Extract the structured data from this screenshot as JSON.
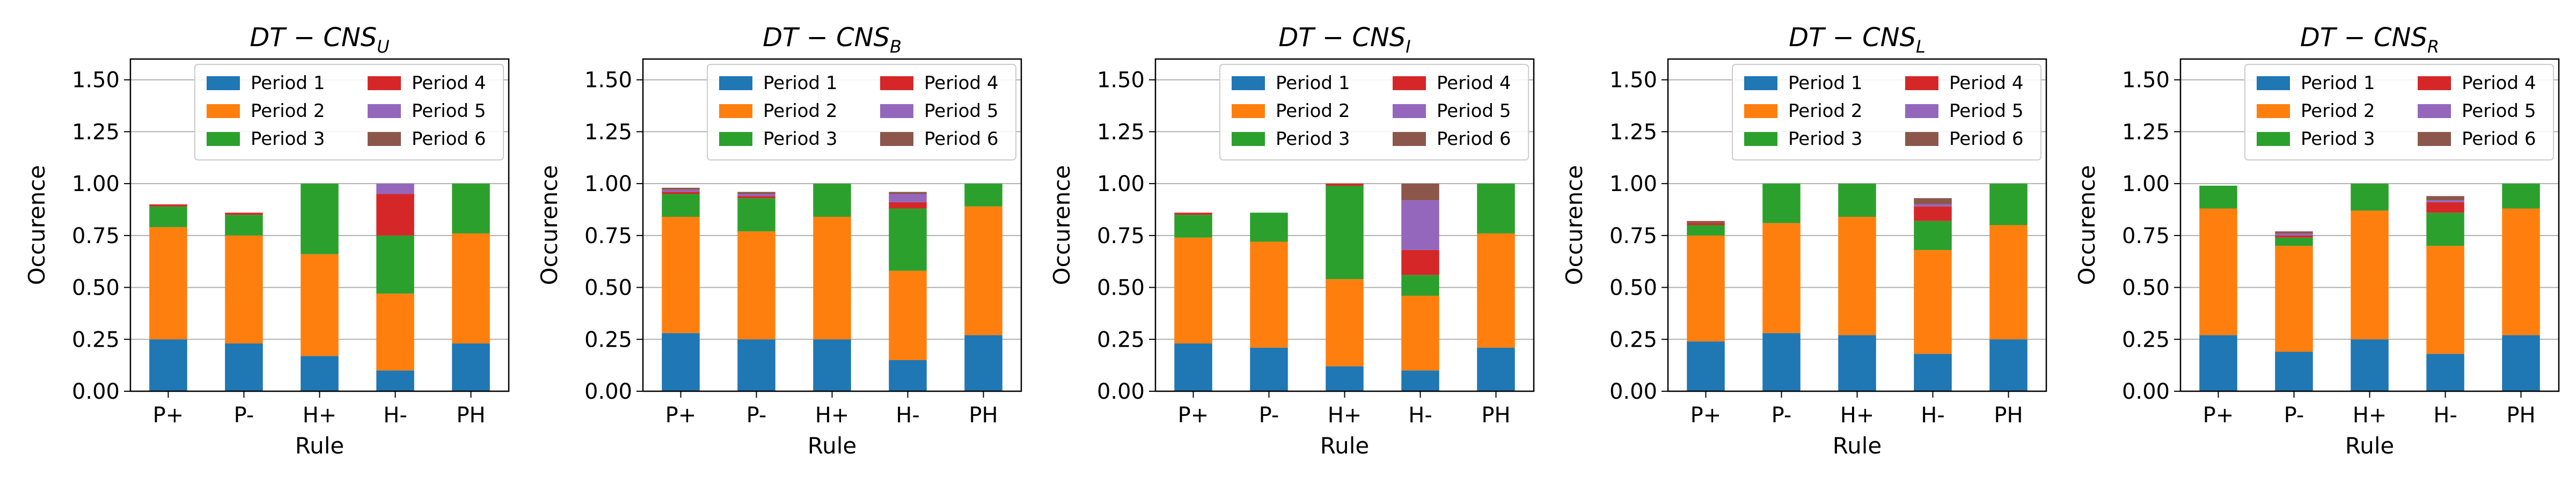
{
  "chart_data": [
    {
      "type": "bar",
      "stacked": true,
      "title_main": "DT − CNS",
      "title_sub": "U",
      "xlabel": "Rule",
      "ylabel": "Occurence",
      "ylim": [
        0,
        1.6
      ],
      "yticks": [
        "0.00",
        "0.25",
        "0.50",
        "0.75",
        "1.00",
        "1.25",
        "1.50"
      ],
      "categories": [
        "P+",
        "P-",
        "H+",
        "H-",
        "PH"
      ],
      "legend_location": "top-right",
      "series": [
        {
          "name": "Period 1",
          "color": "#1f77b4",
          "values": [
            0.25,
            0.23,
            0.17,
            0.1,
            0.23
          ]
        },
        {
          "name": "Period 2",
          "color": "#ff7f0e",
          "values": [
            0.54,
            0.52,
            0.49,
            0.37,
            0.53
          ]
        },
        {
          "name": "Period 3",
          "color": "#2ca02c",
          "values": [
            0.1,
            0.1,
            0.34,
            0.28,
            0.24
          ]
        },
        {
          "name": "Period 4",
          "color": "#d62728",
          "values": [
            0.01,
            0.01,
            0.0,
            0.2,
            0.0
          ]
        },
        {
          "name": "Period 5",
          "color": "#9467bd",
          "values": [
            0.0,
            0.0,
            0.0,
            0.05,
            0.0
          ]
        },
        {
          "name": "Period 6",
          "color": "#8c564b",
          "values": [
            0.0,
            0.0,
            0.0,
            0.0,
            0.0
          ]
        }
      ]
    },
    {
      "type": "bar",
      "stacked": true,
      "title_main": "DT − CNS",
      "title_sub": "B",
      "xlabel": "Rule",
      "ylabel": "Occurence",
      "ylim": [
        0,
        1.6
      ],
      "yticks": [
        "0.00",
        "0.25",
        "0.50",
        "0.75",
        "1.00",
        "1.25",
        "1.50"
      ],
      "categories": [
        "P+",
        "P-",
        "H+",
        "H-",
        "PH"
      ],
      "legend_location": "top-right",
      "series": [
        {
          "name": "Period 1",
          "color": "#1f77b4",
          "values": [
            0.28,
            0.25,
            0.25,
            0.15,
            0.27
          ]
        },
        {
          "name": "Period 2",
          "color": "#ff7f0e",
          "values": [
            0.56,
            0.52,
            0.59,
            0.43,
            0.62
          ]
        },
        {
          "name": "Period 3",
          "color": "#2ca02c",
          "values": [
            0.11,
            0.16,
            0.16,
            0.3,
            0.11
          ]
        },
        {
          "name": "Period 4",
          "color": "#d62728",
          "values": [
            0.01,
            0.01,
            0.0,
            0.03,
            0.0
          ]
        },
        {
          "name": "Period 5",
          "color": "#9467bd",
          "values": [
            0.01,
            0.01,
            0.0,
            0.04,
            0.0
          ]
        },
        {
          "name": "Period 6",
          "color": "#8c564b",
          "values": [
            0.01,
            0.01,
            0.0,
            0.01,
            0.0
          ]
        }
      ]
    },
    {
      "type": "bar",
      "stacked": true,
      "title_main": "DT − CNS",
      "title_sub": "I",
      "xlabel": "Rule",
      "ylabel": "Occurence",
      "ylim": [
        0,
        1.6
      ],
      "yticks": [
        "0.00",
        "0.25",
        "0.50",
        "0.75",
        "1.00",
        "1.25",
        "1.50"
      ],
      "categories": [
        "P+",
        "P-",
        "H+",
        "H-",
        "PH"
      ],
      "legend_location": "top-right",
      "series": [
        {
          "name": "Period 1",
          "color": "#1f77b4",
          "values": [
            0.23,
            0.21,
            0.12,
            0.1,
            0.21
          ]
        },
        {
          "name": "Period 2",
          "color": "#ff7f0e",
          "values": [
            0.51,
            0.51,
            0.42,
            0.36,
            0.55
          ]
        },
        {
          "name": "Period 3",
          "color": "#2ca02c",
          "values": [
            0.11,
            0.14,
            0.45,
            0.1,
            0.24
          ]
        },
        {
          "name": "Period 4",
          "color": "#d62728",
          "values": [
            0.01,
            0.0,
            0.01,
            0.12,
            0.0
          ]
        },
        {
          "name": "Period 5",
          "color": "#9467bd",
          "values": [
            0.0,
            0.0,
            0.0,
            0.24,
            0.0
          ]
        },
        {
          "name": "Period 6",
          "color": "#8c564b",
          "values": [
            0.0,
            0.0,
            0.0,
            0.08,
            0.0
          ]
        }
      ]
    },
    {
      "type": "bar",
      "stacked": true,
      "title_main": "DT − CNS",
      "title_sub": "L",
      "xlabel": "Rule",
      "ylabel": "Occurence",
      "ylim": [
        0,
        1.6
      ],
      "yticks": [
        "0.00",
        "0.25",
        "0.50",
        "0.75",
        "1.00",
        "1.25",
        "1.50"
      ],
      "categories": [
        "P+",
        "P-",
        "H+",
        "H-",
        "PH"
      ],
      "legend_location": "top-right",
      "series": [
        {
          "name": "Period 1",
          "color": "#1f77b4",
          "values": [
            0.24,
            0.28,
            0.27,
            0.18,
            0.25
          ]
        },
        {
          "name": "Period 2",
          "color": "#ff7f0e",
          "values": [
            0.51,
            0.53,
            0.57,
            0.5,
            0.55
          ]
        },
        {
          "name": "Period 3",
          "color": "#2ca02c",
          "values": [
            0.05,
            0.19,
            0.16,
            0.14,
            0.2
          ]
        },
        {
          "name": "Period 4",
          "color": "#d62728",
          "values": [
            0.01,
            0.0,
            0.0,
            0.07,
            0.0
          ]
        },
        {
          "name": "Period 5",
          "color": "#9467bd",
          "values": [
            0.0,
            0.0,
            0.0,
            0.01,
            0.0
          ]
        },
        {
          "name": "Period 6",
          "color": "#8c564b",
          "values": [
            0.01,
            0.0,
            0.0,
            0.03,
            0.0
          ]
        }
      ]
    },
    {
      "type": "bar",
      "stacked": true,
      "title_main": "DT − CNS",
      "title_sub": "R",
      "xlabel": "Rule",
      "ylabel": "Occurence",
      "ylim": [
        0,
        1.6
      ],
      "yticks": [
        "0.00",
        "0.25",
        "0.50",
        "0.75",
        "1.00",
        "1.25",
        "1.50"
      ],
      "categories": [
        "P+",
        "P-",
        "H+",
        "H-",
        "PH"
      ],
      "legend_location": "top-right",
      "series": [
        {
          "name": "Period 1",
          "color": "#1f77b4",
          "values": [
            0.27,
            0.19,
            0.25,
            0.18,
            0.27
          ]
        },
        {
          "name": "Period 2",
          "color": "#ff7f0e",
          "values": [
            0.61,
            0.51,
            0.62,
            0.52,
            0.61
          ]
        },
        {
          "name": "Period 3",
          "color": "#2ca02c",
          "values": [
            0.11,
            0.04,
            0.13,
            0.16,
            0.12
          ]
        },
        {
          "name": "Period 4",
          "color": "#d62728",
          "values": [
            0.0,
            0.01,
            0.0,
            0.05,
            0.0
          ]
        },
        {
          "name": "Period 5",
          "color": "#9467bd",
          "values": [
            0.0,
            0.01,
            0.0,
            0.01,
            0.0
          ]
        },
        {
          "name": "Period 6",
          "color": "#8c564b",
          "values": [
            0.0,
            0.01,
            0.0,
            0.02,
            0.0
          ]
        }
      ]
    }
  ]
}
